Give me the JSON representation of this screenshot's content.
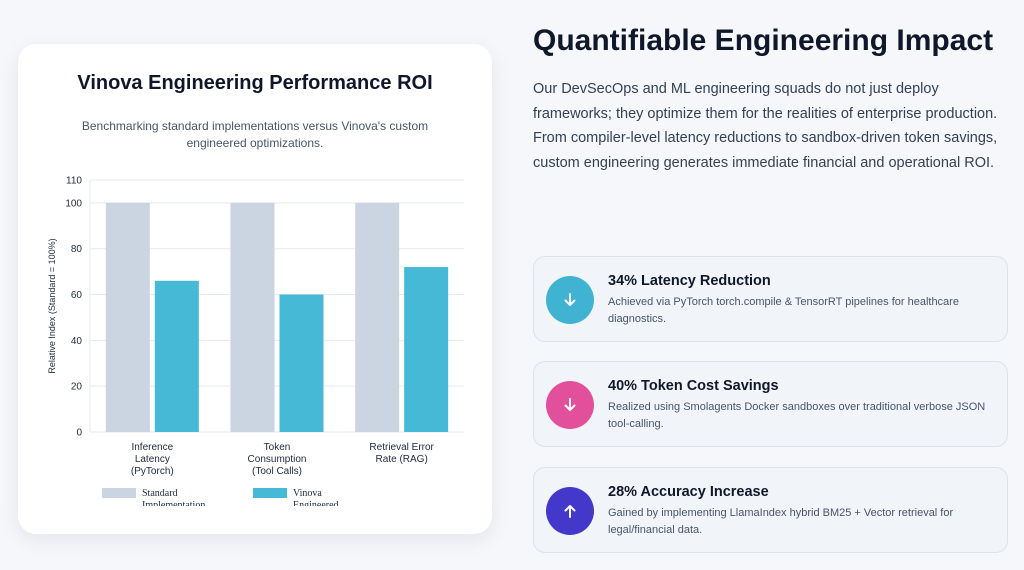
{
  "card": {
    "title": "Vinova Engineering Performance ROI",
    "subtitle": "Benchmarking standard implementations versus Vinova's custom engineered optimizations."
  },
  "chart_data": {
    "type": "bar",
    "categories": [
      [
        "Inference",
        "Latency",
        "(PyTorch)"
      ],
      [
        "Token",
        "Consumption",
        "(Tool Calls)"
      ],
      [
        "Retrieval Error",
        "Rate (RAG)"
      ]
    ],
    "series": [
      {
        "name": "Standard Implementation",
        "legend_label": [
          "Standard",
          "Implementation"
        ],
        "values": [
          100,
          100,
          100
        ],
        "color": "#cbd5e1"
      },
      {
        "name": "Vinova Engineered",
        "legend_label": [
          "Vinova",
          "Engineered"
        ],
        "values": [
          66,
          60,
          72
        ],
        "color": "#46b9d6"
      }
    ],
    "ylabel": "Relative Index (Standard = 100%)",
    "ylim": [
      0,
      110
    ],
    "yticks": [
      0,
      20,
      40,
      60,
      80,
      100,
      110
    ],
    "grid": "horizontal",
    "legend": "bottom"
  },
  "section": {
    "heading": "Quantifiable Engineering Impact",
    "intro": "Our DevSecOps and ML engineering squads do not just deploy frameworks; they optimize them for the realities of enterprise production. From compiler-level latency reductions to sandbox-driven token savings, custom engineering generates immediate financial and operational ROI."
  },
  "features": [
    {
      "title": "34% Latency Reduction",
      "desc": "Achieved via PyTorch torch.compile & TensorRT pipelines for healthcare diagnostics.",
      "icon": "arrow-down-icon",
      "color": "#3fb3d1"
    },
    {
      "title": "40% Token Cost Savings",
      "desc": "Realized using Smolagents Docker sandboxes over traditional verbose JSON tool-calling.",
      "icon": "arrow-down-icon",
      "color": "#e24f9a"
    },
    {
      "title": "28% Accuracy Increase",
      "desc": "Gained by implementing LlamaIndex hybrid BM25 + Vector retrieval for legal/financial data.",
      "icon": "arrow-up-icon",
      "color": "#4338ca"
    }
  ]
}
